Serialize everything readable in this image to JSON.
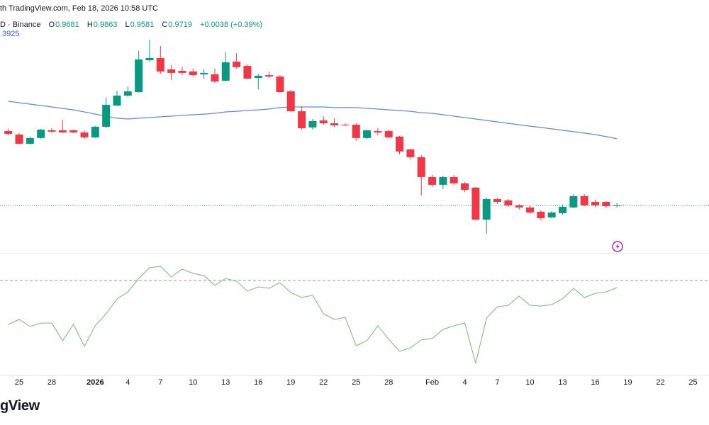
{
  "header": {
    "source": "th TradingView.com, Feb 18, 2026 10:58 UTC",
    "symbol": "D · Binance",
    "labels": [
      "O",
      "H",
      "L",
      "C"
    ],
    "change": "+0.0038 (+0.39%)",
    "ma_label": ".3925"
  },
  "footer": {
    "logo": "gView"
  },
  "chart_data": {
    "type": "candlestick",
    "categories": [
      null,
      "25",
      null,
      null,
      "28",
      null,
      null,
      null,
      "2026",
      null,
      null,
      "4",
      null,
      null,
      "7",
      null,
      null,
      "10",
      null,
      null,
      "13",
      null,
      null,
      "16",
      null,
      null,
      "19",
      null,
      null,
      "22",
      null,
      null,
      "25",
      null,
      null,
      "28",
      null,
      null,
      null,
      "Feb",
      null,
      null,
      "4",
      null,
      null,
      "7",
      null,
      null,
      "10",
      null,
      null,
      "13",
      null,
      null,
      "16",
      null,
      null,
      "19",
      null,
      null,
      "22",
      null,
      null,
      "25"
    ],
    "open": [
      1.441,
      1.419,
      1.361,
      1.397,
      1.446,
      1.446,
      1.446,
      1.432,
      1.401,
      1.468,
      1.602,
      1.665,
      1.687,
      1.888,
      1.902,
      1.83,
      1.821,
      1.817,
      1.799,
      1.799,
      1.759,
      1.879,
      1.852,
      1.776,
      1.794,
      1.785,
      1.692,
      1.566,
      1.464,
      1.508,
      1.49,
      1.481,
      1.481,
      1.397,
      1.441,
      1.441,
      1.406,
      1.325,
      1.276,
      1.151,
      1.102,
      1.151,
      1.111,
      1.084,
      0.882,
      1.012,
      1.003,
      0.972,
      0.959,
      0.932,
      0.896,
      0.923,
      0.959,
      1.03,
      0.994,
      0.994,
      0.9681,
      null,
      null,
      null,
      null,
      null,
      null,
      null
    ],
    "high": [
      1.455,
      1.428,
      1.406,
      1.455,
      1.459,
      1.513,
      1.45,
      1.446,
      1.472,
      1.651,
      1.696,
      1.723,
      1.946,
      2.018,
      1.978,
      1.857,
      1.848,
      1.835,
      1.83,
      1.835,
      1.937,
      1.933,
      1.861,
      1.803,
      1.817,
      1.794,
      1.701,
      1.598,
      1.517,
      1.535,
      1.522,
      1.49,
      1.49,
      1.45,
      1.459,
      1.45,
      1.41,
      1.33,
      1.289,
      1.164,
      1.16,
      1.164,
      1.119,
      1.088,
      1.021,
      1.021,
      1.012,
      0.981,
      0.972,
      0.941,
      0.936,
      0.976,
      1.043,
      1.043,
      1.008,
      0.999,
      0.9863,
      null,
      null,
      null,
      null,
      null,
      null,
      null
    ],
    "low": [
      1.414,
      1.356,
      1.356,
      1.392,
      1.428,
      1.428,
      1.428,
      1.392,
      1.397,
      1.459,
      1.598,
      1.656,
      1.683,
      1.879,
      1.803,
      1.763,
      1.794,
      1.785,
      1.772,
      1.745,
      1.754,
      1.835,
      1.768,
      1.705,
      1.776,
      1.683,
      1.562,
      1.45,
      1.45,
      1.481,
      1.464,
      1.472,
      1.379,
      1.392,
      1.414,
      1.397,
      1.294,
      1.262,
      1.034,
      1.088,
      1.075,
      1.102,
      1.057,
      0.878,
      0.793,
      0.981,
      0.963,
      0.945,
      0.918,
      0.878,
      0.891,
      0.914,
      0.954,
      0.967,
      0.959,
      0.954,
      0.9581,
      null,
      null,
      null,
      null,
      null,
      null,
      null
    ],
    "close": [
      1.423,
      1.361,
      1.397,
      1.45,
      1.437,
      1.432,
      1.432,
      1.401,
      1.468,
      1.607,
      1.665,
      1.692,
      1.893,
      1.902,
      1.817,
      1.808,
      1.808,
      1.794,
      1.808,
      1.754,
      1.875,
      1.844,
      1.772,
      1.79,
      1.785,
      1.687,
      1.566,
      1.459,
      1.504,
      1.49,
      1.477,
      1.477,
      1.397,
      1.446,
      1.432,
      1.401,
      1.312,
      1.276,
      1.151,
      1.102,
      1.151,
      1.111,
      1.07,
      0.882,
      1.012,
      0.994,
      0.972,
      0.959,
      0.927,
      0.891,
      0.927,
      0.963,
      1.03,
      0.972,
      0.972,
      0.967,
      0.9719,
      null,
      null,
      null,
      null,
      null,
      null,
      null
    ],
    "up_color": "#089981",
    "down_color": "#f23645",
    "ylim": [
      0.668,
      2.268
    ],
    "ma": {
      "color": "#5b8bd0",
      "values": [
        1.629,
        1.62,
        1.611,
        1.602,
        1.593,
        1.584,
        1.575,
        1.562,
        1.548,
        1.535,
        1.522,
        1.517,
        1.522,
        1.526,
        1.531,
        1.535,
        1.54,
        1.544,
        1.548,
        1.553,
        1.562,
        1.566,
        1.571,
        1.575,
        1.58,
        1.589,
        1.593,
        1.593,
        1.593,
        1.593,
        1.589,
        1.589,
        1.589,
        1.584,
        1.58,
        1.575,
        1.571,
        1.566,
        1.557,
        1.553,
        1.544,
        1.535,
        1.526,
        1.517,
        1.508,
        1.499,
        1.49,
        1.481,
        1.472,
        1.464,
        1.455,
        1.446,
        1.437,
        1.428,
        1.419,
        1.406,
        1.3925,
        null,
        null,
        null,
        null,
        null,
        null,
        null
      ]
    },
    "indicator": {
      "color": "#6cbf6f",
      "ylim": [
        0,
        100
      ],
      "level": 79.8,
      "values": [
        42.9,
        47.0,
        41.1,
        44.0,
        44.0,
        29.2,
        42.9,
        24.4,
        41.7,
        51.8,
        64.3,
        70.2,
        81.5,
        90.5,
        91.7,
        82.7,
        89.3,
        85.7,
        83.9,
        75.6,
        81.5,
        79.2,
        70.8,
        74.4,
        73.2,
        78.0,
        69.6,
        65.5,
        67.3,
        51.8,
        47.0,
        48.8,
        25.0,
        29.2,
        41.7,
        30.4,
        20.2,
        23.2,
        29.8,
        31.0,
        38.7,
        41.7,
        44.0,
        10.1,
        48.2,
        57.7,
        58.9,
        66.7,
        58.9,
        58.3,
        59.5,
        64.3,
        73.2,
        65.5,
        69.0,
        70.2,
        73.8,
        null,
        null,
        null,
        null,
        null,
        null,
        null
      ]
    }
  }
}
